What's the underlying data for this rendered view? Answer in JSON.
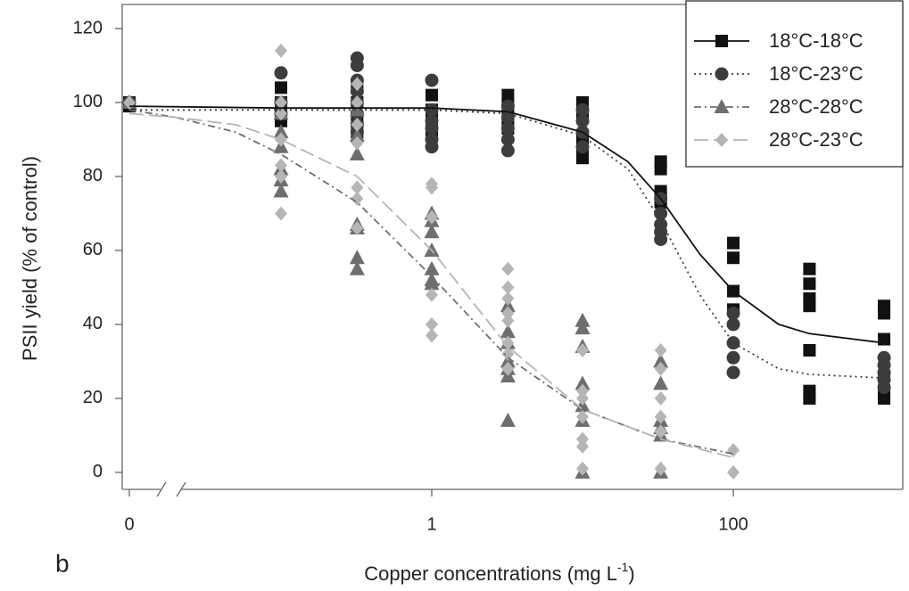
{
  "chart_data": {
    "type": "scatter",
    "panel_label": "b",
    "x_label": "Copper concentrations (mg L",
    "x_label_sup": "-1",
    "x_label_end": ")",
    "y_label": "PSII yield (% of control)",
    "log_x": true,
    "grid": false,
    "legend": "top-right",
    "xlim": [
      0.00885,
      1330
    ],
    "ylim": [
      -4.6,
      126.5
    ],
    "xticks": [
      {
        "value": 0,
        "label": "0"
      },
      1,
      100
    ],
    "yticks": [
      0,
      20,
      40,
      60,
      80,
      100,
      120
    ],
    "series": [
      {
        "name": "18°C-18°C",
        "color": "#111111",
        "marker": "square",
        "dash": "solid",
        "x": [
          0,
          0,
          0.1,
          0.1,
          0.1,
          0.1,
          0.32,
          0.32,
          0.32,
          0.32,
          1,
          1,
          1,
          1,
          3.2,
          3.2,
          3.2,
          3.2,
          10,
          10,
          10,
          10,
          10,
          33,
          33,
          33,
          33,
          33,
          100,
          100,
          100,
          100,
          320,
          320,
          320,
          320,
          320,
          320,
          320,
          1000,
          1000,
          1000,
          1000,
          1000,
          1000
        ],
        "values": [
          100,
          99,
          104,
          100,
          97,
          95,
          104,
          100,
          96,
          92,
          102,
          98,
          95,
          92,
          102,
          99,
          96,
          93,
          100,
          96,
          90,
          85,
          88,
          84,
          82,
          76,
          74,
          73,
          62,
          58,
          49,
          44,
          55,
          51,
          47,
          45,
          33,
          22,
          20,
          45,
          43,
          36,
          26,
          22,
          20
        ],
        "fit_x": [
          0,
          0.1,
          1,
          3.2,
          10,
          20,
          33,
          60,
          100,
          200,
          320,
          1000
        ],
        "fit_values": [
          99,
          98.5,
          98.5,
          97.5,
          92,
          84,
          74,
          59,
          49,
          40,
          37.5,
          35
        ]
      },
      {
        "name": "18°C-23°C",
        "color": "#3d3d3d",
        "marker": "circle",
        "dash": "dot",
        "x": [
          0,
          0.1,
          0.1,
          0.1,
          0.32,
          0.32,
          0.32,
          0.32,
          0.32,
          0.32,
          0.32,
          0.32,
          1,
          1,
          1,
          1,
          1,
          1,
          3.2,
          3.2,
          3.2,
          3.2,
          3.2,
          10,
          10,
          10,
          10,
          33,
          33,
          33,
          33,
          33,
          100,
          100,
          100,
          100,
          100,
          1000,
          1000,
          1000,
          1000,
          1000
        ],
        "values": [
          100,
          108,
          100,
          97,
          112,
          110,
          106,
          103,
          100,
          97,
          94,
          92,
          106,
          98,
          95,
          93,
          90,
          88,
          99,
          96,
          93,
          90,
          87,
          98,
          95,
          92,
          88,
          74,
          70,
          67,
          65,
          63,
          43,
          40,
          35,
          31,
          27,
          31,
          29,
          27,
          25,
          23
        ],
        "fit_x": [
          0,
          0.1,
          1,
          3.2,
          10,
          20,
          33,
          60,
          100,
          200,
          320,
          1000
        ],
        "fit_values": [
          98,
          98,
          98,
          97,
          91,
          82,
          68,
          48,
          35,
          28,
          26.5,
          25.5
        ]
      },
      {
        "name": "28°C-28°C",
        "color": "#6e6e6e",
        "marker": "triangle",
        "dash": "dashdot",
        "x": [
          0,
          0.1,
          0.1,
          0.1,
          0.1,
          0.1,
          0.1,
          0.32,
          0.32,
          0.32,
          0.32,
          0.32,
          0.32,
          0.32,
          1,
          1,
          1,
          1,
          1,
          1,
          1,
          3.2,
          3.2,
          3.2,
          3.2,
          3.2,
          3.2,
          3.2,
          10,
          10,
          10,
          10,
          10,
          10,
          10,
          33,
          33,
          33,
          33,
          33,
          33
        ],
        "values": [
          100,
          97,
          92,
          88,
          82,
          79,
          76,
          98,
          91,
          86,
          67,
          66,
          58,
          55,
          70,
          68,
          65,
          60,
          55,
          52,
          51,
          45,
          38,
          35,
          30,
          28,
          26,
          14,
          41,
          39,
          34,
          24,
          18,
          14,
          0,
          30,
          24,
          14,
          12,
          10,
          0
        ],
        "fit_x": [
          0,
          0.02,
          0.05,
          0.1,
          0.32,
          1,
          3.2,
          10,
          33,
          100
        ],
        "fit_values": [
          98,
          96,
          92,
          86,
          73,
          53,
          31,
          17,
          9,
          5
        ]
      },
      {
        "name": "28°C-23°C",
        "color": "#b5b5b5",
        "marker": "diamond",
        "dash": "longdash",
        "x": [
          0,
          0.1,
          0.1,
          0.1,
          0.1,
          0.1,
          0.1,
          0.1,
          0.32,
          0.32,
          0.32,
          0.32,
          0.32,
          0.32,
          0.32,
          1,
          1,
          1,
          1,
          1,
          1,
          3.2,
          3.2,
          3.2,
          3.2,
          3.2,
          3.2,
          3.2,
          3.2,
          10,
          10,
          10,
          10,
          10,
          10,
          10,
          33,
          33,
          33,
          33,
          33,
          33,
          100,
          100
        ],
        "values": [
          100,
          114,
          100,
          97,
          90,
          83,
          80,
          70,
          105,
          100,
          94,
          89,
          77,
          74,
          66,
          78,
          77,
          69,
          48,
          40,
          37,
          55,
          50,
          47,
          43,
          41,
          35,
          32,
          28,
          33,
          22,
          20,
          15,
          9,
          7,
          1,
          33,
          28,
          20,
          15,
          11,
          1,
          6,
          0
        ],
        "fit_x": [
          0,
          0.02,
          0.05,
          0.1,
          0.32,
          1,
          3.2,
          10,
          33,
          100
        ],
        "fit_values": [
          97,
          96,
          94,
          90,
          80,
          60,
          34,
          17,
          9,
          4
        ]
      }
    ]
  }
}
